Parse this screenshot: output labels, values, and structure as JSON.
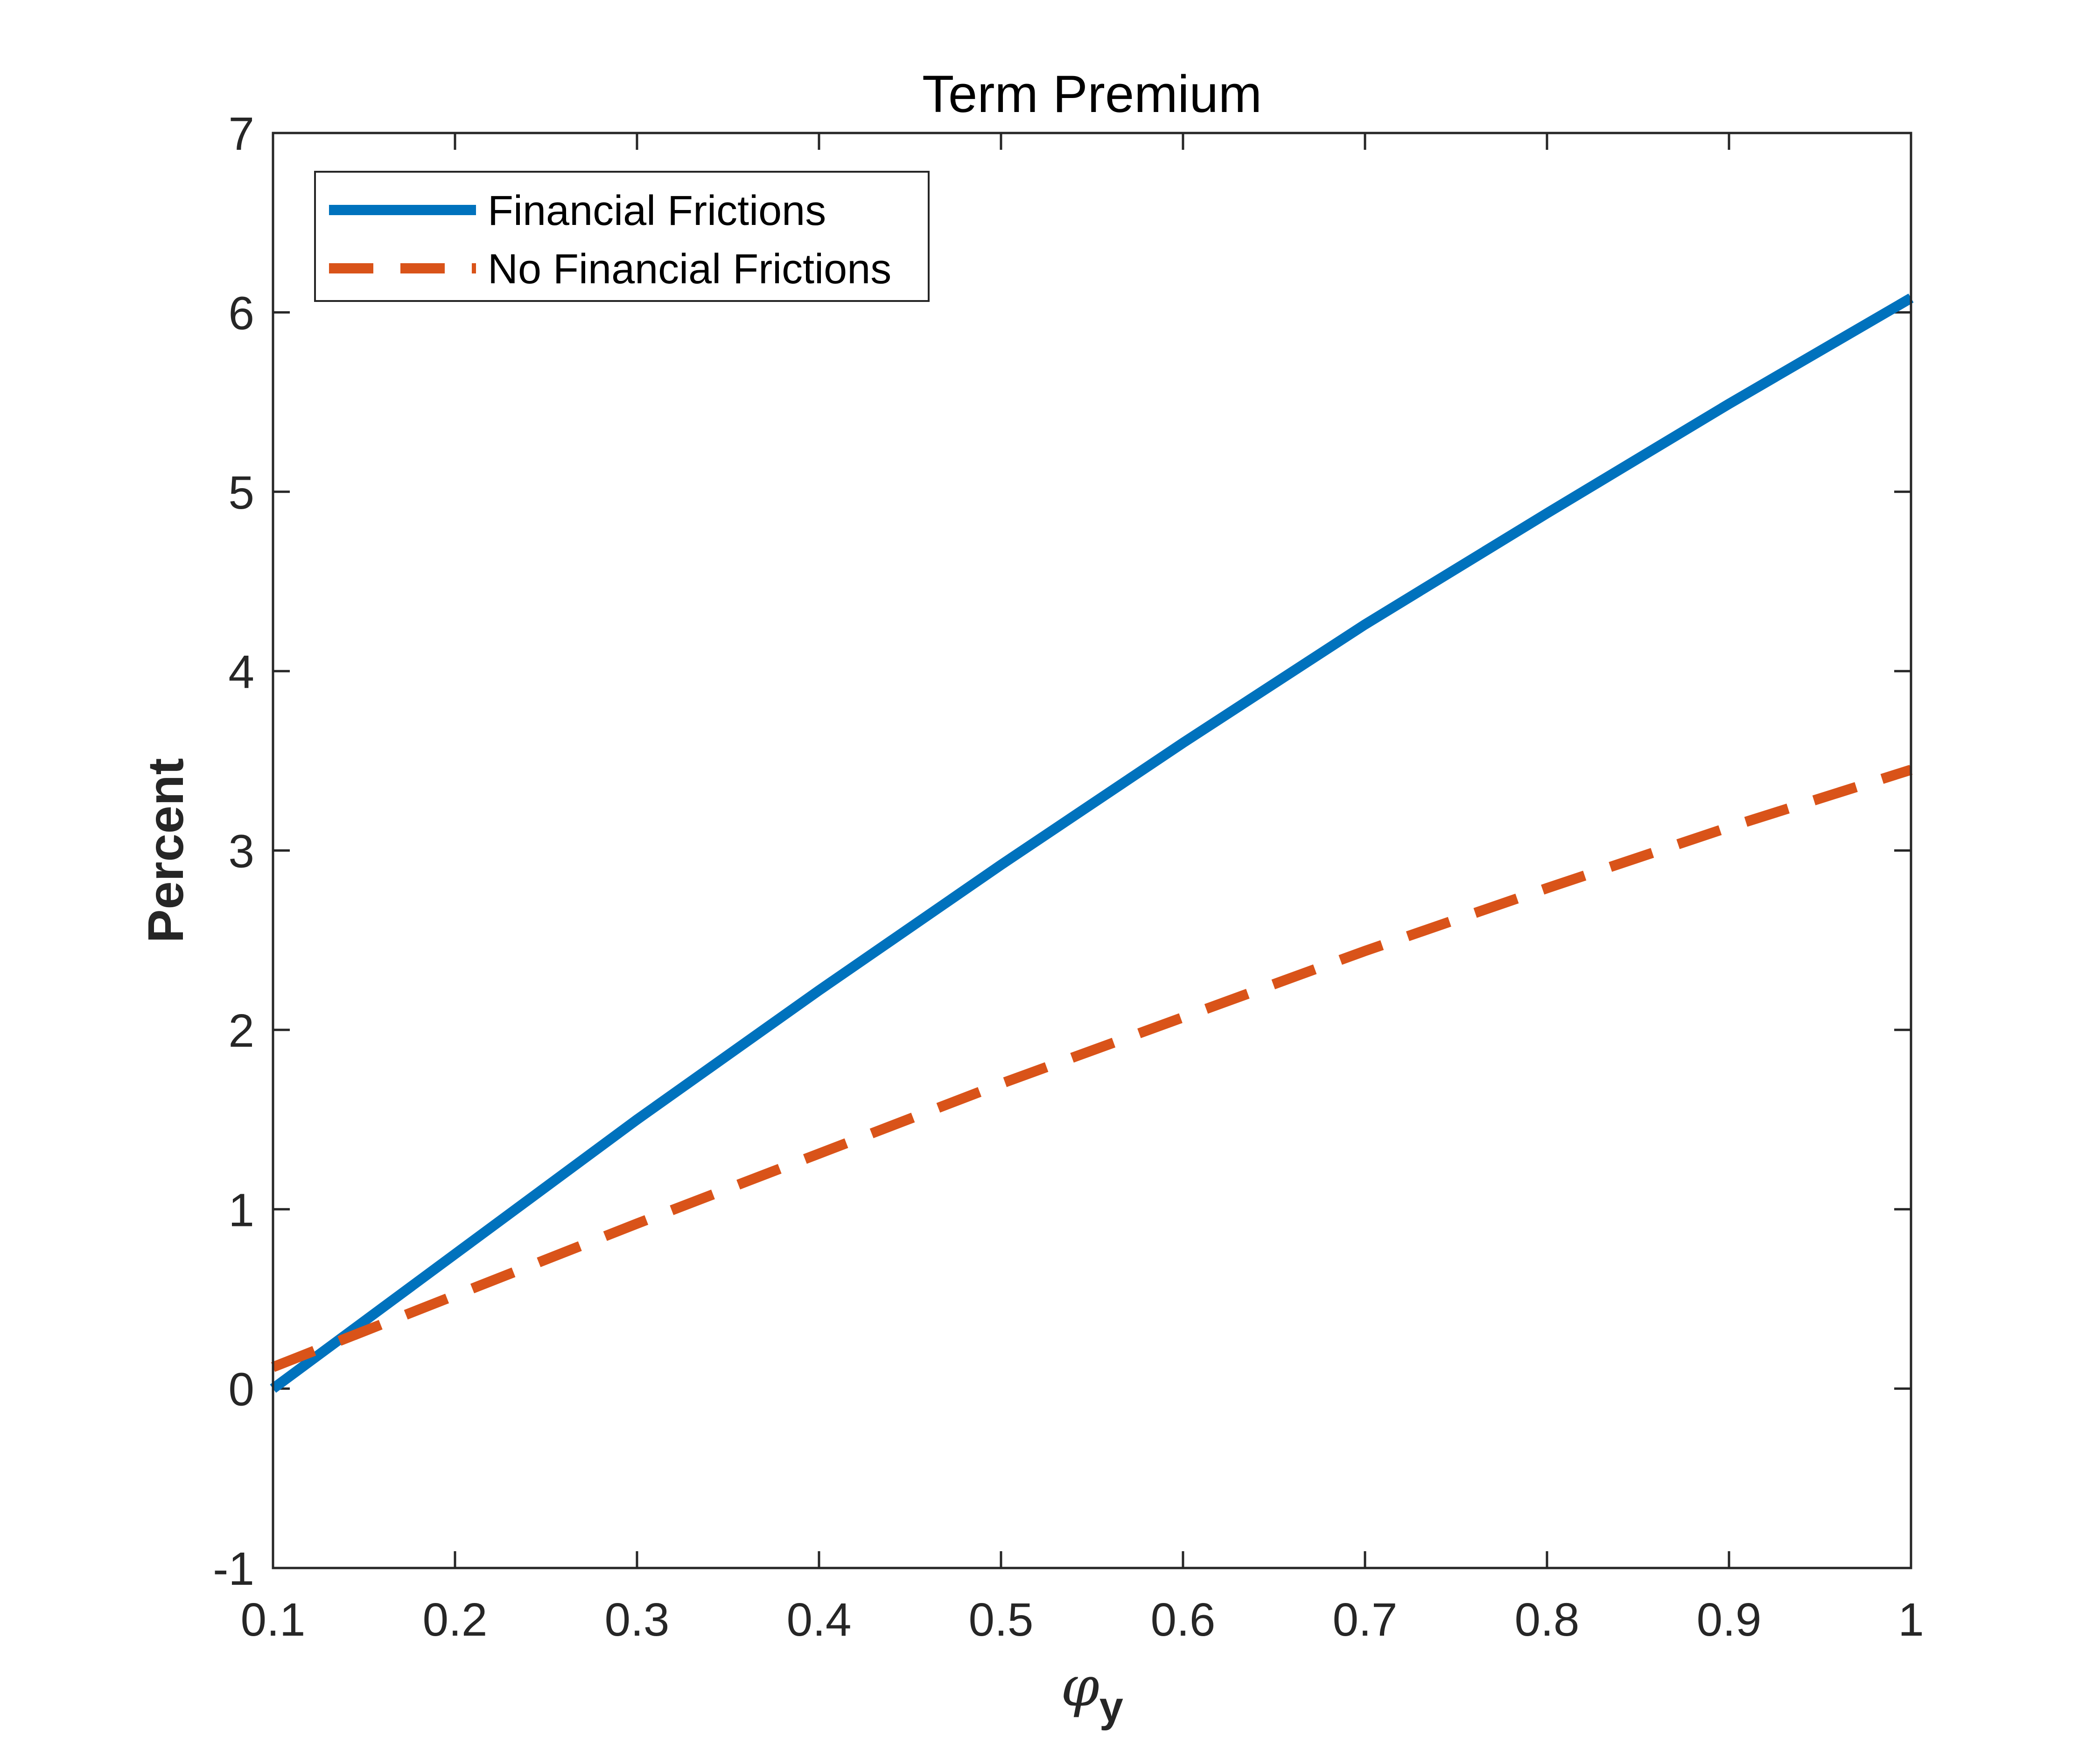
{
  "chart_data": {
    "type": "line",
    "title": "Term Premium",
    "xlabel": {
      "symbol": "φ",
      "subscript": "y"
    },
    "ylabel": "Percent",
    "xlim": [
      0.1,
      1
    ],
    "ylim": [
      -1,
      7
    ],
    "xticks": [
      0.1,
      0.2,
      0.3,
      0.4,
      0.5,
      0.6,
      0.7,
      0.8,
      0.9,
      1
    ],
    "xtick_labels": [
      "0.1",
      "0.2",
      "0.3",
      "0.4",
      "0.5",
      "0.6",
      "0.7",
      "0.8",
      "0.9",
      "1"
    ],
    "yticks": [
      -1,
      0,
      1,
      2,
      3,
      4,
      5,
      6,
      7
    ],
    "ytick_labels": [
      "-1",
      "0",
      "1",
      "2",
      "3",
      "4",
      "5",
      "6",
      "7"
    ],
    "grid": false,
    "legend_position": "top-left",
    "x": [
      0.1,
      0.2,
      0.3,
      0.4,
      0.5,
      0.6,
      0.7,
      0.8,
      0.9,
      1
    ],
    "series": [
      {
        "name": "Financial Frictions",
        "style": "solid",
        "color": "#0072BD",
        "values": [
          0,
          0.75,
          1.5,
          2.22,
          2.92,
          3.6,
          4.26,
          4.88,
          5.49,
          6.08
        ]
      },
      {
        "name": "No Financial Frictions",
        "style": "dashed",
        "color": "#D95319",
        "values": [
          0.12,
          0.52,
          0.92,
          1.31,
          1.7,
          2.07,
          2.44,
          2.79,
          3.13,
          3.45
        ]
      }
    ]
  }
}
